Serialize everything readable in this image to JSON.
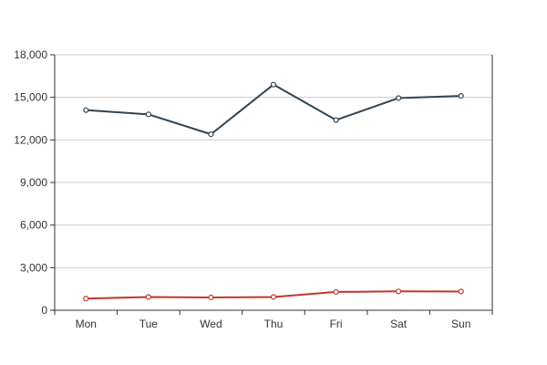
{
  "chart_data": {
    "type": "line",
    "title": "",
    "xlabel": "",
    "ylabel": "",
    "categories": [
      "Mon",
      "Tue",
      "Wed",
      "Thu",
      "Fri",
      "Sat",
      "Sun"
    ],
    "ylim": [
      0,
      18000
    ],
    "y_ticks": [
      0,
      3000,
      6000,
      9000,
      12000,
      15000,
      18000
    ],
    "y_tick_labels": [
      "0",
      "3,000",
      "6,000",
      "9,000",
      "12,000",
      "15,000",
      "18,000"
    ],
    "grid": true,
    "legend": "none",
    "series": [
      {
        "color": "#2f4554",
        "values": [
          14100,
          13800,
          12400,
          15900,
          13400,
          14950,
          15100
        ]
      },
      {
        "color": "#c23531",
        "values": [
          820,
          932,
          901,
          934,
          1290,
          1330,
          1320
        ]
      }
    ]
  },
  "colors": {
    "axis": "#333333",
    "grid": "#cccccc"
  }
}
